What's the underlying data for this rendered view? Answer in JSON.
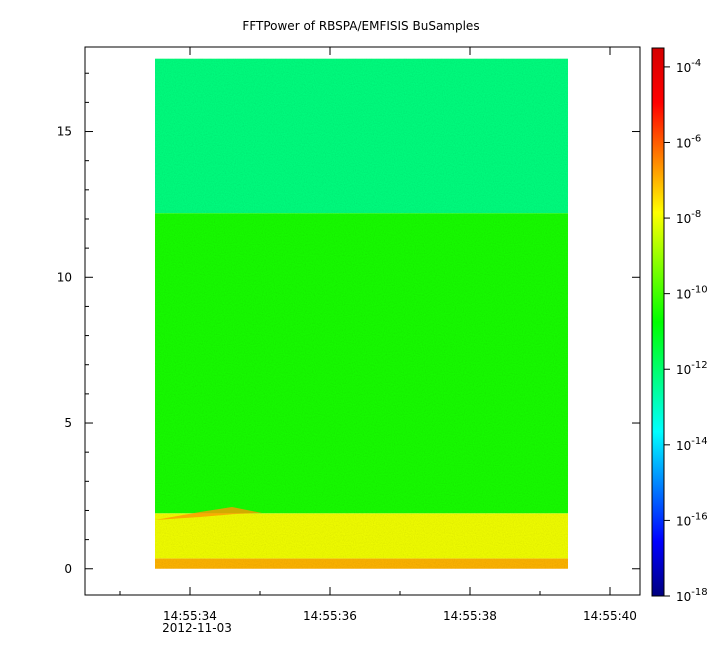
{
  "chart_data": {
    "type": "heatmap",
    "title": "FFTPower of RBSPA/EMFISIS  BuSamples",
    "xlabel": "",
    "ylabel": "",
    "date_label": "2012-11-03",
    "x_ticks": [
      "14:55:34",
      "14:55:36",
      "14:55:38",
      "14:55:40"
    ],
    "y_ticks": [
      0,
      5,
      10,
      15
    ],
    "ylim": [
      -0.9,
      17.9
    ],
    "data_extent": {
      "time_start": "14:55:33.5",
      "time_end": "14:55:39.4",
      "y_min": 0,
      "y_max": 17.5
    },
    "bands": [
      {
        "y_min": 12.2,
        "y_max": 17.5,
        "log_power": -12.2
      },
      {
        "y_min": 1.9,
        "y_max": 12.2,
        "log_power": -10.5
      },
      {
        "y_min": 0.35,
        "y_max": 1.9,
        "log_power": -8.0
      },
      {
        "y_min": 0,
        "y_max": 0.35,
        "log_power": -7.0
      }
    ],
    "colorbar": {
      "scale": "log",
      "range": [
        -18,
        -3.5
      ],
      "tick_bases": [
        "10",
        "10",
        "10",
        "10",
        "10",
        "10",
        "10",
        "10"
      ],
      "tick_exponents": [
        "-4",
        "-6",
        "-8",
        "-10",
        "-12",
        "-14",
        "-16",
        "-18"
      ],
      "tick_values": [
        -4,
        -6,
        -8,
        -10,
        -12,
        -14,
        -16,
        -18
      ],
      "colormap": [
        "#00007f",
        "#0000ff",
        "#007fff",
        "#00ffff",
        "#00ff7f",
        "#00ff00",
        "#7fff00",
        "#ffff00",
        "#ff7f00",
        "#ff0000",
        "#d40000"
      ]
    }
  }
}
